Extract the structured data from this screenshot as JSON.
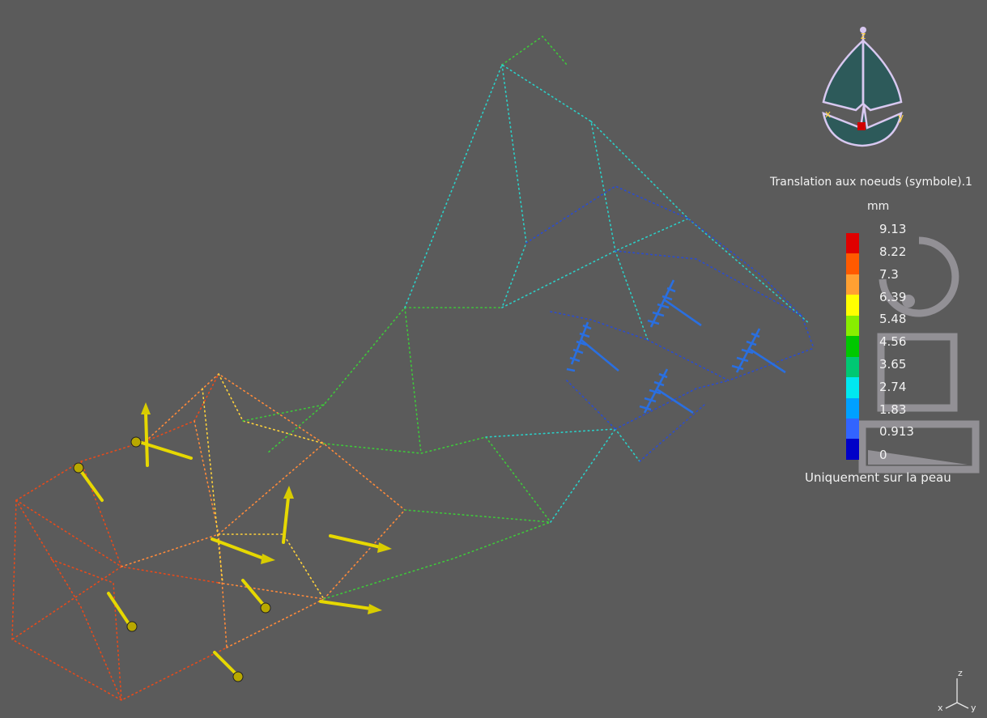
{
  "legend": {
    "title": "Translation aux noeuds (symbole).1",
    "unit": "mm",
    "ticks": [
      "9.13",
      "8.22",
      "7.3",
      "6.39",
      "5.48",
      "4.56",
      "3.65",
      "2.74",
      "1.83",
      "0.913",
      "0"
    ],
    "colors": [
      "#e00000",
      "#ff5a00",
      "#ffa032",
      "#ffff00",
      "#88ee00",
      "#00c800",
      "#00c873",
      "#00e8f0",
      "#00a0ff",
      "#3264ff",
      "#0000c8"
    ],
    "footer": "Uniquement sur la peau"
  },
  "compass": {
    "labels": {
      "x": "x",
      "y": "y",
      "z": "z"
    }
  },
  "triad": {
    "labels": {
      "x": "x",
      "y": "y",
      "z": "z"
    }
  },
  "colors": {
    "background": "#5b5b5b",
    "load_arrow": "#e6d800",
    "restraint": "#2a6fe0",
    "compass_fill": "#2d5a5a",
    "compass_outline": "#d8c8f0"
  },
  "icons": [
    "compass-icon",
    "axis-triad-icon",
    "load-arrow-icon",
    "restraint-symbol-icon"
  ]
}
